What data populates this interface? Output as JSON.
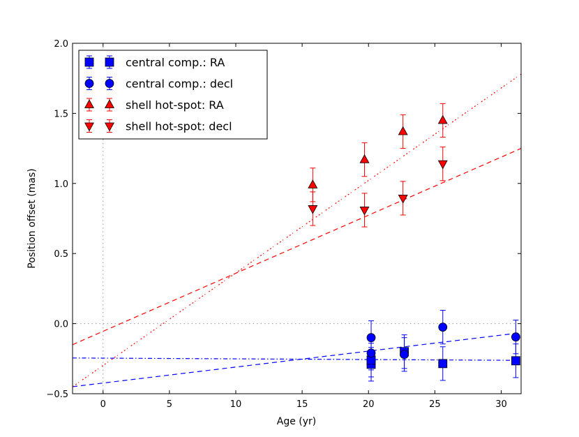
{
  "chart_data": {
    "type": "scatter",
    "title": "",
    "xlabel": "Age (yr)",
    "ylabel": "Position offset (mas)",
    "xlim": [
      -2.3,
      31.5
    ],
    "ylim": [
      -0.5,
      2.0
    ],
    "xticks": [
      0,
      5,
      10,
      15,
      20,
      25,
      30
    ],
    "yticks": [
      -0.5,
      0.0,
      0.5,
      1.0,
      1.5,
      2.0
    ],
    "xtick_labels": [
      "0",
      "5",
      "10",
      "15",
      "20",
      "25",
      "30"
    ],
    "ytick_labels": [
      "−0.5",
      "0.0",
      "0.5",
      "1.0",
      "1.5",
      "2.0"
    ],
    "legend_position": "top-left",
    "reference_lines": [
      {
        "orientation": "horizontal",
        "value": 0.0,
        "style": "dotted",
        "color": "#999999"
      },
      {
        "orientation": "vertical",
        "value": 0.0,
        "style": "dotted",
        "color": "#999999"
      }
    ],
    "series": [
      {
        "name": "central comp.: RA",
        "marker": "square",
        "color": "#0000ff",
        "x": [
          20.2,
          20.2,
          22.7,
          25.6,
          31.1
        ],
        "y": [
          -0.29,
          -0.26,
          -0.2,
          -0.285,
          -0.265
        ],
        "yerr": [
          0.12,
          0.12,
          0.12,
          0.12,
          0.12
        ]
      },
      {
        "name": "central comp.: decl",
        "marker": "circle",
        "color": "#0000ff",
        "x": [
          20.2,
          20.2,
          22.7,
          25.6,
          31.1
        ],
        "y": [
          -0.1,
          -0.21,
          -0.22,
          -0.025,
          -0.095
        ],
        "yerr": [
          0.12,
          0.12,
          0.12,
          0.12,
          0.12
        ]
      },
      {
        "name": "shell hot-spot: RA",
        "marker": "triangle-up",
        "color": "#ff0000",
        "x": [
          15.8,
          19.7,
          22.6,
          25.6
        ],
        "y": [
          0.99,
          1.17,
          1.37,
          1.45
        ],
        "yerr": [
          0.12,
          0.12,
          0.12,
          0.12
        ]
      },
      {
        "name": "shell hot-spot: decl",
        "marker": "triangle-down",
        "color": "#ff0000",
        "x": [
          15.8,
          19.7,
          22.6,
          25.6
        ],
        "y": [
          0.82,
          0.81,
          0.895,
          1.14
        ],
        "yerr": [
          0.12,
          0.12,
          0.12,
          0.12
        ]
      }
    ],
    "fit_lines": [
      {
        "label": "central comp. RA fit",
        "style": "dashdot",
        "color": "#0000ff",
        "x": [
          -2.3,
          31.5
        ],
        "y": [
          -0.245,
          -0.262
        ]
      },
      {
        "label": "central comp. decl fit",
        "style": "dashed",
        "color": "#0000ff",
        "x": [
          -2.3,
          31.5
        ],
        "y": [
          -0.45,
          -0.065
        ]
      },
      {
        "label": "shell hot-spot RA fit",
        "style": "dotdash",
        "color": "#ff0000",
        "x": [
          -2.3,
          31.5
        ],
        "y": [
          -0.45,
          1.78
        ]
      },
      {
        "label": "shell hot-spot decl fit",
        "style": "dashed",
        "color": "#ff0000",
        "x": [
          -2.3,
          31.5
        ],
        "y": [
          -0.15,
          1.25
        ]
      }
    ]
  }
}
